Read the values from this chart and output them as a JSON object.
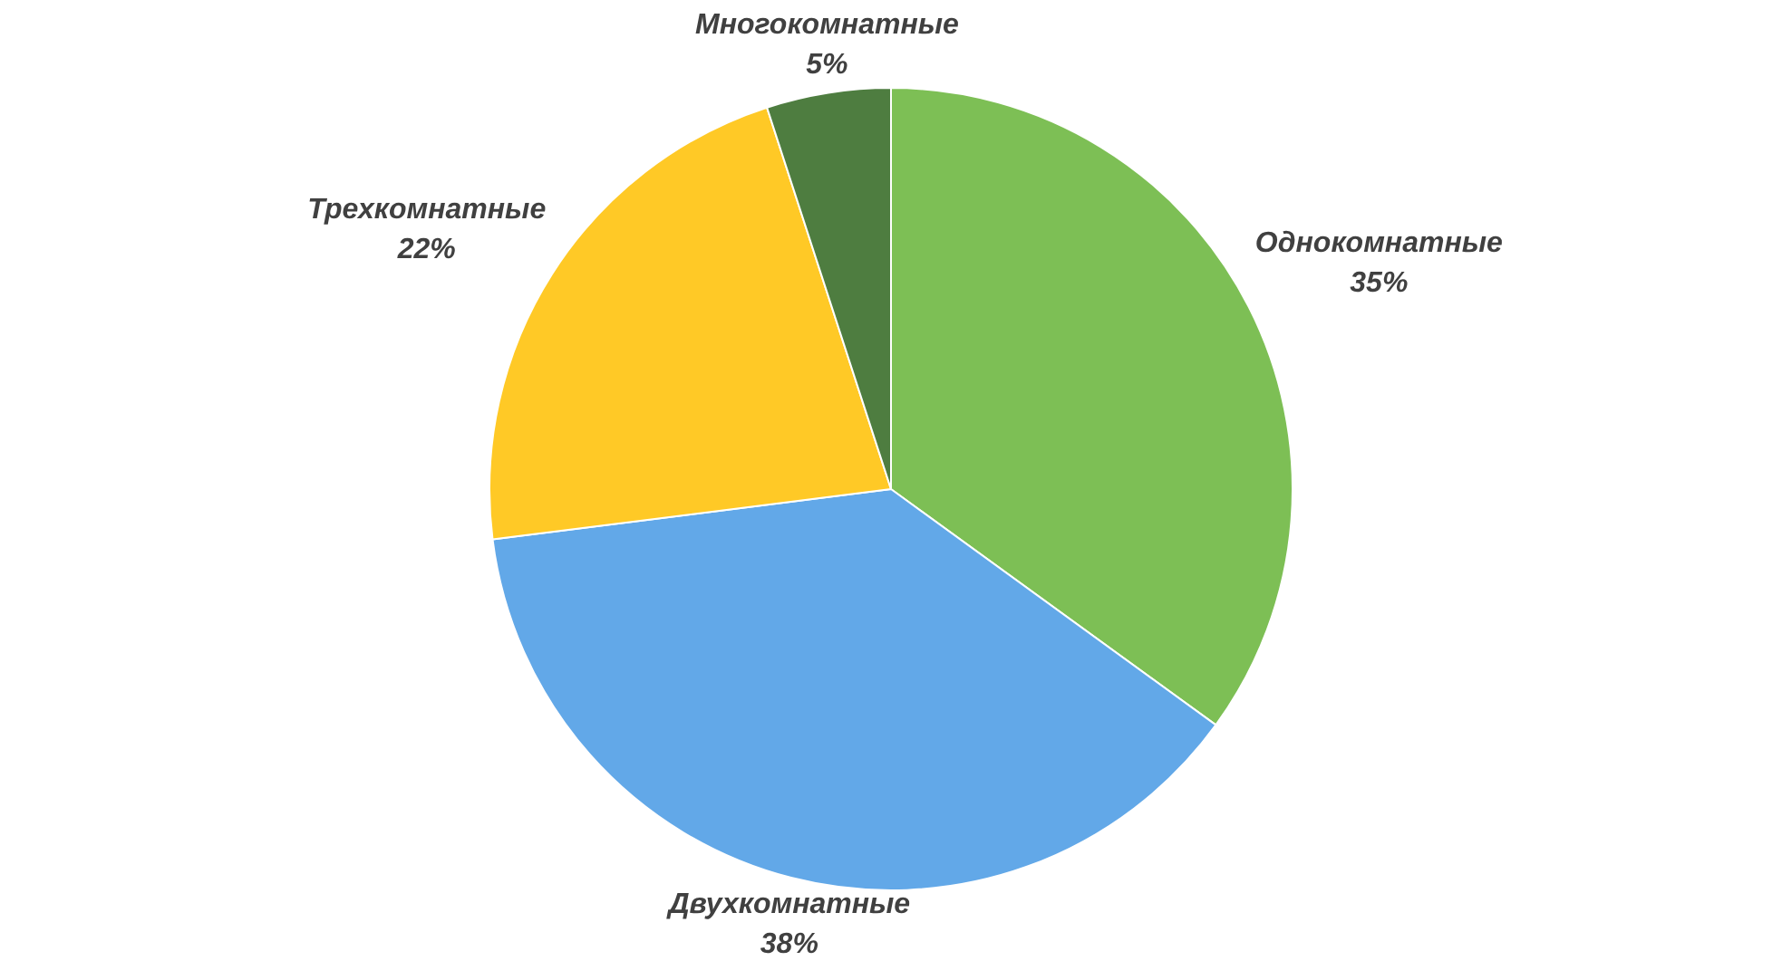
{
  "chart_data": {
    "type": "pie",
    "categories": [
      "Однокомнатные",
      "Двухкомнатные",
      "Трехкомнатные",
      "Многокомнатные"
    ],
    "values": [
      35,
      38,
      22,
      5
    ],
    "value_labels": [
      "35%",
      "38%",
      "22%",
      "5%"
    ],
    "colors": [
      "#7dbf55",
      "#62a8e8",
      "#ffc926",
      "#4e7d40"
    ],
    "legend": false
  }
}
